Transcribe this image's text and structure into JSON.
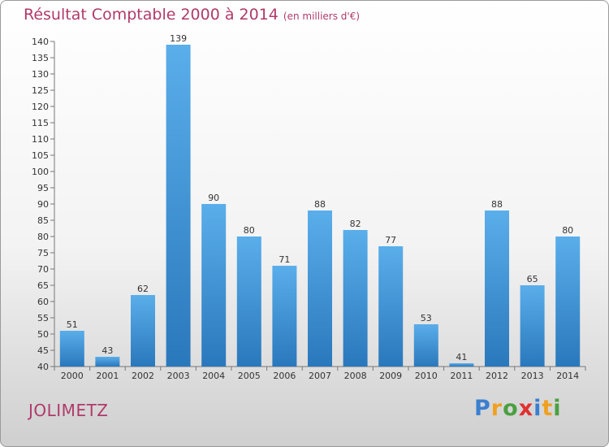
{
  "chart_data": {
    "type": "bar",
    "title": "Résultat Comptable 2000 à 2014",
    "subtitle": "(en milliers d'€)",
    "categories": [
      "2000",
      "2001",
      "2002",
      "2003",
      "2004",
      "2005",
      "2006",
      "2007",
      "2008",
      "2009",
      "2010",
      "2011",
      "2012",
      "2013",
      "2014"
    ],
    "values": [
      51,
      43,
      62,
      139,
      90,
      80,
      71,
      88,
      82,
      77,
      53,
      41,
      88,
      65,
      80
    ],
    "ylim": [
      40,
      140
    ],
    "ytick_step": 5,
    "xlabel": "",
    "ylabel": "",
    "grid": false
  },
  "commune": "JOLIMETZ",
  "brand": {
    "letters": [
      "P",
      "r",
      "o",
      "x",
      "i",
      "t",
      "i"
    ],
    "colors": [
      "#3a7fd0",
      "#f0a020",
      "#4aa040",
      "#e03030",
      "#3a7fd0",
      "#f0a020",
      "#4aa040"
    ]
  },
  "colors": {
    "bar_top": "#5aaeea",
    "bar_bottom": "#2a78bc",
    "title": "#b03a6a"
  }
}
